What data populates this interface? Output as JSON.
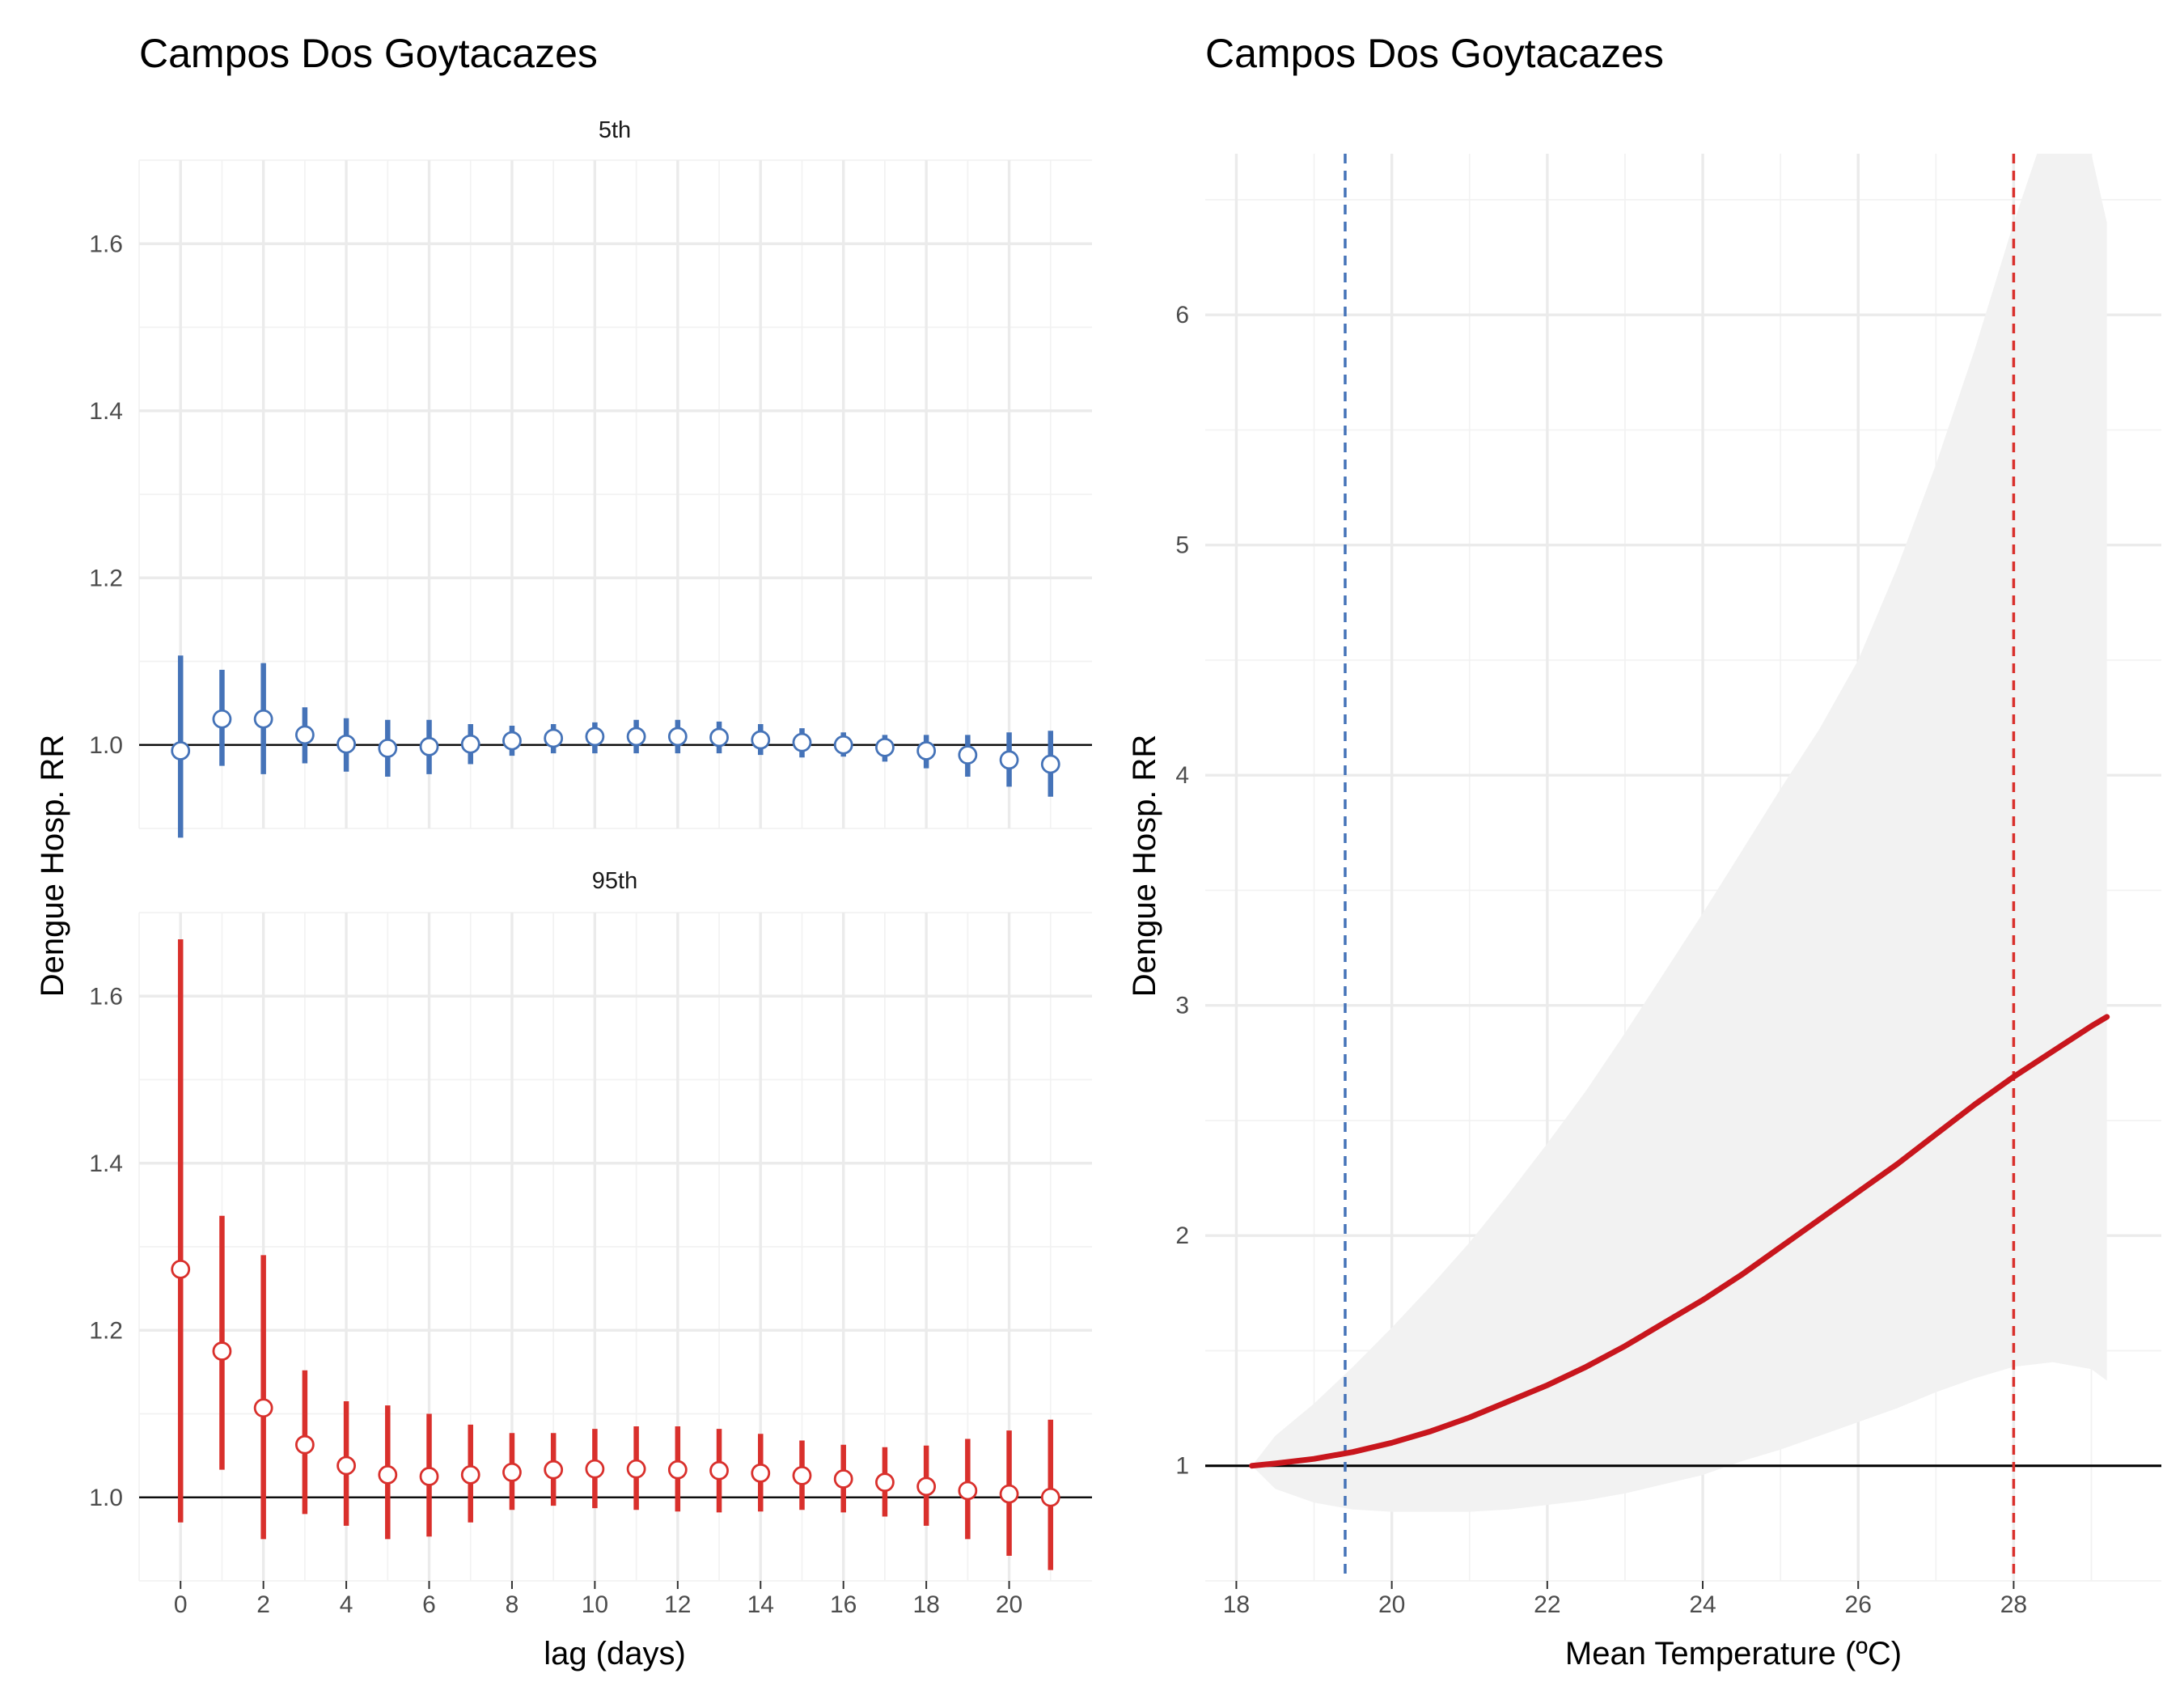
{
  "chart_data": [
    {
      "type": "scatter",
      "title": "Campos Dos Goytacazes",
      "xlabel": "lag (days)",
      "ylabel": "Dengue Hosp. RR",
      "xlim": [
        -1,
        22
      ],
      "ylim": [
        0.9,
        1.7
      ],
      "x_ticks": [
        0,
        2,
        4,
        6,
        8,
        10,
        12,
        14,
        16,
        18,
        20
      ],
      "x_tick_labels": [
        "0",
        "2",
        "4",
        "6",
        "8",
        "10",
        "12",
        "14",
        "16",
        "18",
        "20"
      ],
      "y_ticks": [
        1.0,
        1.2,
        1.4,
        1.6
      ],
      "y_tick_labels": [
        "1.0",
        "1.2",
        "1.4",
        "1.6"
      ],
      "reference_line": 1.0,
      "grid": true,
      "panels": [
        {
          "name": "5th",
          "color": "#4573b8",
          "x": [
            0,
            1,
            2,
            3,
            4,
            5,
            6,
            7,
            8,
            9,
            10,
            11,
            12,
            13,
            14,
            15,
            16,
            17,
            18,
            19,
            20,
            21
          ],
          "estimate": [
            0.993,
            1.031,
            1.031,
            1.012,
            1.001,
            0.996,
            0.998,
            1.001,
            1.005,
            1.008,
            1.01,
            1.01,
            1.01,
            1.009,
            1.006,
            1.003,
            1.0,
            0.997,
            0.993,
            0.988,
            0.982,
            0.977
          ],
          "lower": [
            0.889,
            0.975,
            0.965,
            0.978,
            0.968,
            0.962,
            0.965,
            0.977,
            0.987,
            0.99,
            0.99,
            0.99,
            0.99,
            0.99,
            0.988,
            0.985,
            0.986,
            0.98,
            0.972,
            0.962,
            0.95,
            0.938
          ],
          "upper": [
            1.107,
            1.09,
            1.098,
            1.045,
            1.032,
            1.03,
            1.03,
            1.025,
            1.023,
            1.025,
            1.027,
            1.03,
            1.03,
            1.028,
            1.025,
            1.02,
            1.015,
            1.012,
            1.012,
            1.012,
            1.015,
            1.017
          ]
        },
        {
          "name": "95th",
          "color": "#d9302c",
          "x": [
            0,
            1,
            2,
            3,
            4,
            5,
            6,
            7,
            8,
            9,
            10,
            11,
            12,
            13,
            14,
            15,
            16,
            17,
            18,
            19,
            20,
            21
          ],
          "estimate": [
            1.273,
            1.175,
            1.107,
            1.063,
            1.038,
            1.027,
            1.025,
            1.027,
            1.03,
            1.033,
            1.034,
            1.034,
            1.033,
            1.032,
            1.029,
            1.026,
            1.022,
            1.018,
            1.013,
            1.008,
            1.004,
            1.0
          ],
          "lower": [
            0.97,
            1.033,
            0.95,
            0.98,
            0.966,
            0.95,
            0.953,
            0.97,
            0.985,
            0.99,
            0.987,
            0.985,
            0.983,
            0.982,
            0.983,
            0.985,
            0.982,
            0.977,
            0.966,
            0.95,
            0.93,
            0.913
          ],
          "upper": [
            1.668,
            1.337,
            1.29,
            1.152,
            1.115,
            1.11,
            1.1,
            1.087,
            1.077,
            1.077,
            1.082,
            1.085,
            1.085,
            1.082,
            1.076,
            1.068,
            1.063,
            1.06,
            1.062,
            1.07,
            1.08,
            1.093
          ]
        }
      ]
    },
    {
      "type": "line",
      "title": "Campos Dos Goytacazes",
      "xlabel": "Mean Temperature (ºC)",
      "ylabel": "Dengue Hosp. RR",
      "xlim": [
        17.6,
        29.9
      ],
      "ylim": [
        0.5,
        6.7
      ],
      "x_ticks": [
        18,
        20,
        22,
        24,
        26,
        28
      ],
      "x_tick_labels": [
        "18",
        "20",
        "22",
        "24",
        "26",
        "28"
      ],
      "y_ticks": [
        1,
        2,
        3,
        4,
        5,
        6
      ],
      "y_tick_labels": [
        "1",
        "2",
        "3",
        "4",
        "5",
        "6"
      ],
      "reference_line": 1,
      "grid": true,
      "line_color": "#c8161d",
      "band_color": "#f2f2f2",
      "vertical_lines": [
        {
          "x": 19.4,
          "color": "#4573b8",
          "style": "dashed"
        },
        {
          "x": 28.0,
          "color": "#d9302c",
          "style": "dashed"
        }
      ],
      "x": [
        18.2,
        18.5,
        19.0,
        19.5,
        20.0,
        20.5,
        21.0,
        21.5,
        22.0,
        22.5,
        23.0,
        23.5,
        24.0,
        24.5,
        25.0,
        25.5,
        26.0,
        26.5,
        27.0,
        27.5,
        28.0,
        28.5,
        29.0,
        29.2
      ],
      "values": [
        1.0,
        1.01,
        1.03,
        1.06,
        1.1,
        1.15,
        1.21,
        1.28,
        1.35,
        1.43,
        1.52,
        1.62,
        1.72,
        1.83,
        1.95,
        2.07,
        2.19,
        2.31,
        2.44,
        2.57,
        2.69,
        2.8,
        2.91,
        2.95
      ],
      "lower": [
        1.0,
        0.9,
        0.84,
        0.81,
        0.8,
        0.8,
        0.8,
        0.81,
        0.83,
        0.85,
        0.88,
        0.92,
        0.96,
        1.02,
        1.07,
        1.13,
        1.19,
        1.25,
        1.32,
        1.38,
        1.43,
        1.45,
        1.42,
        1.37
      ],
      "upper": [
        1.0,
        1.13,
        1.27,
        1.43,
        1.6,
        1.78,
        1.97,
        2.18,
        2.4,
        2.63,
        2.88,
        3.14,
        3.4,
        3.67,
        3.94,
        4.2,
        4.5,
        4.9,
        5.35,
        5.85,
        6.4,
        6.9,
        6.7,
        6.4
      ]
    }
  ]
}
